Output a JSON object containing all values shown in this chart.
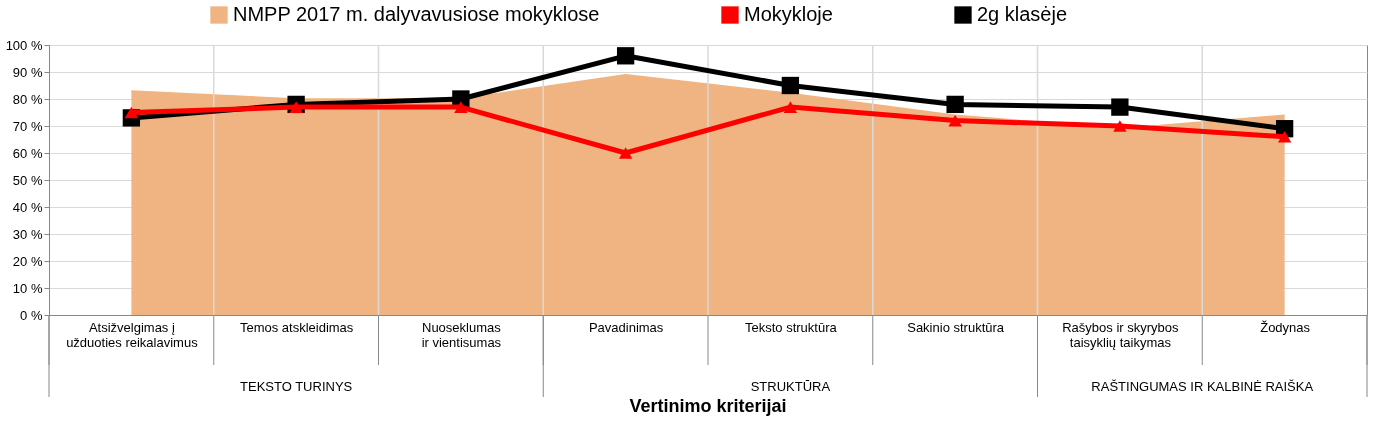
{
  "chart_data": {
    "type": "line",
    "xlabel": "Vertinimo kriterijai",
    "categories": [
      "Atsižvelgimas į užduoties reikalavimus",
      "Temos atskleidimas",
      "Nuoseklumas ir vientisumas",
      "Pavadinimas",
      "Teksto struktūra",
      "Sakinio struktūra",
      "Rašybos ir skyrybos taisyklių taikymas",
      "Žodynas"
    ],
    "series": [
      {
        "name": "NMPP 2017 m. dalyvavusiose mokyklose",
        "type": "area",
        "color": "#f0b482",
        "values": [
          83,
          80,
          80,
          89,
          82,
          74,
          69,
          74
        ]
      },
      {
        "name": "Mokykloje",
        "type": "line",
        "marker": "triangle",
        "color": "#ff0000",
        "values": [
          75,
          77,
          77,
          60,
          77,
          72,
          70,
          66
        ]
      },
      {
        "name": "2g klasėje",
        "type": "line",
        "marker": "square",
        "color": "#000000",
        "values": [
          73,
          78,
          80,
          96,
          85,
          78,
          77,
          69
        ]
      }
    ],
    "ylim": [
      0,
      100
    ],
    "yticks": [
      {
        "value": 0,
        "label": "0 %"
      },
      {
        "value": 10,
        "label": "10 %"
      },
      {
        "value": 20,
        "label": "20 %"
      },
      {
        "value": 30,
        "label": "30 %"
      },
      {
        "value": 40,
        "label": "40 %"
      },
      {
        "value": 50,
        "label": "50 %"
      },
      {
        "value": 60,
        "label": "60 %"
      },
      {
        "value": 70,
        "label": "70 %"
      },
      {
        "value": 80,
        "label": "80 %"
      },
      {
        "value": 90,
        "label": "90 %"
      },
      {
        "value": 100,
        "label": "100 %"
      }
    ],
    "annotations": [
      "TEKSTO TURINYS",
      "STRUKTŪRA",
      "RAŠTINGUMAS IR KALBINĖ RAIŠKA"
    ],
    "grid": true,
    "legend": "top",
    "line_style": "solid"
  }
}
